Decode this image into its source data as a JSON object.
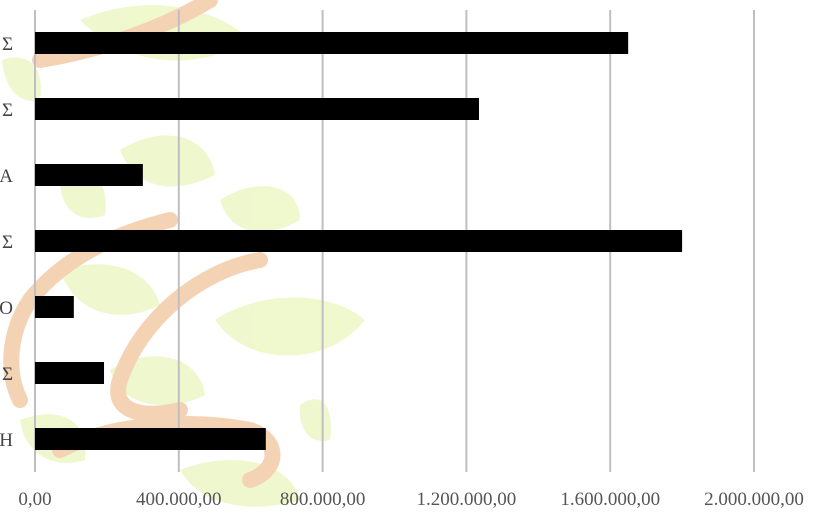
{
  "chart_data": {
    "type": "bar",
    "orientation": "horizontal",
    "categories": [
      "Σ",
      "Σ",
      "Α",
      "Σ",
      "Ο",
      "Σ",
      "Η"
    ],
    "values": [
      1650000,
      1235000,
      300000,
      1800000,
      108000,
      192000,
      642000
    ],
    "xlim": [
      0,
      2000000
    ],
    "x_ticks": [
      0,
      400000,
      800000,
      1200000,
      1600000,
      2000000
    ],
    "x_tick_labels": [
      "0,00",
      "400.000,00",
      "800.000,00",
      "1.200.000,00",
      "1.600.000,00",
      "2.000.000,00"
    ],
    "title": "",
    "xlabel": "",
    "ylabel": "",
    "grid": "vertical",
    "bar_color": "#000000",
    "grid_color": "#bfbfbf"
  }
}
